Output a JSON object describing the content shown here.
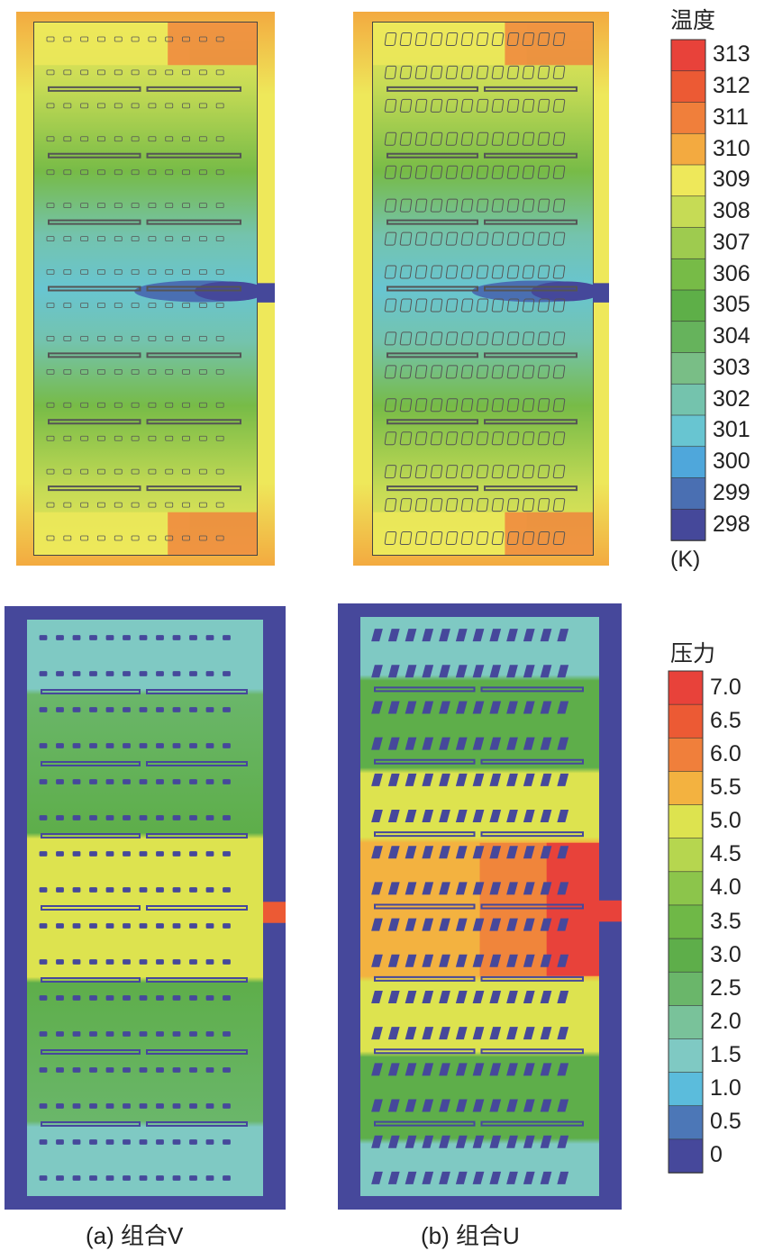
{
  "temperature_legend": {
    "title": "温度",
    "unit": "(K)",
    "labels": [
      "313",
      "312",
      "311",
      "310",
      "309",
      "308",
      "307",
      "306",
      "305",
      "304",
      "303",
      "302",
      "301",
      "300",
      "299",
      "298"
    ],
    "colors": [
      "#e8423a",
      "#ec5a34",
      "#f07f3b",
      "#f3aa40",
      "#eee85a",
      "#c6db55",
      "#9ecb4f",
      "#77bb47",
      "#5eaf48",
      "#66b35c",
      "#79be86",
      "#74c3ad",
      "#68c5d1",
      "#4fa7db",
      "#4a6fb2",
      "#45489a"
    ]
  },
  "pressure_legend": {
    "title": "压力",
    "labels": [
      "7.0",
      "6.5",
      "6.0",
      "5.5",
      "5.0",
      "4.5",
      "4.0",
      "3.5",
      "3.0",
      "2.5",
      "2.0",
      "1.5",
      "1.0",
      "0.5",
      "0"
    ],
    "colors": [
      "#e8423a",
      "#ec5a34",
      "#f07f3b",
      "#f3b240",
      "#dde34f",
      "#b6d64f",
      "#8cc54b",
      "#6fb847",
      "#5eae4a",
      "#6ab66a",
      "#79c29a",
      "#7fc9c3",
      "#5bbcdc",
      "#4c77b7",
      "#46489b"
    ]
  },
  "captions": {
    "a": "(a) 组合V",
    "b": "(b) 组合U"
  }
}
